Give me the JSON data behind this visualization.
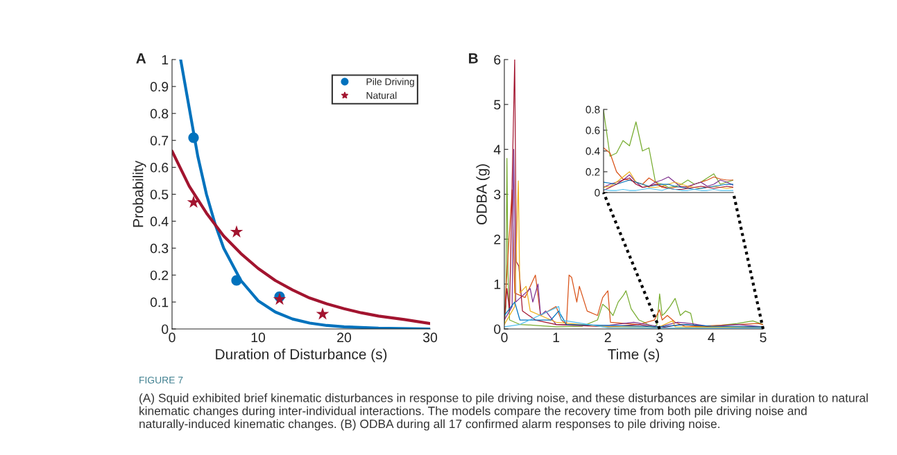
{
  "chart_data": [
    {
      "type": "scatter",
      "title": "A",
      "xlabel": "Duration of Disturbance (s)",
      "ylabel": "Probability",
      "xlim": [
        0,
        30
      ],
      "ylim": [
        0,
        1
      ],
      "xticks": [
        0,
        10,
        20,
        30
      ],
      "yticks": [
        0,
        0.1,
        0.2,
        0.3,
        0.4,
        0.5,
        0.6,
        0.7,
        0.8,
        0.9,
        1
      ],
      "grid": false,
      "legend": "top right",
      "annotations": [
        "FIGURE 7",
        "(A) Squid exhibited brief kinematic disturbances in response to pile driving noise, and these disturbances are similar in duration to natural kinematic changes during inter-individual interactions. The models compare the recovery time from both pile driving noise and naturally-induced kinematic changes. (B) ODBA during all 17 confirmed alarm responses to pile driving noise."
      ],
      "series": [
        {
          "type": "line",
          "color": "#0072bd",
          "x": [
            1,
            2,
            3,
            4,
            5,
            6,
            8,
            10,
            12,
            14,
            16,
            18,
            20,
            24,
            30
          ],
          "values": [
            1.0,
            0.82,
            0.64,
            0.5,
            0.39,
            0.3,
            0.18,
            0.105,
            0.063,
            0.037,
            0.022,
            0.013,
            0.008,
            0.003,
            0
          ]
        },
        {
          "type": "line",
          "color": "#a2142f",
          "x": [
            0,
            2,
            4,
            6,
            8,
            10,
            12,
            14,
            16,
            18,
            20,
            22,
            24,
            27,
            30
          ],
          "values": [
            0.66,
            0.53,
            0.43,
            0.345,
            0.28,
            0.225,
            0.18,
            0.145,
            0.115,
            0.093,
            0.075,
            0.06,
            0.048,
            0.035,
            0.02
          ]
        },
        {
          "type": "scatter",
          "name": "Pile Driving",
          "color": "#0072bd",
          "marker": "circle",
          "x": [
            2.5,
            7.5,
            12.5
          ],
          "values": [
            0.71,
            0.18,
            0.12
          ]
        },
        {
          "type": "scatter",
          "name": "Natural",
          "color": "#a2142f",
          "marker": "star",
          "x": [
            2.5,
            7.5,
            12.5,
            17.5
          ],
          "values": [
            0.47,
            0.36,
            0.11,
            0.055
          ]
        }
      ]
    },
    {
      "type": "line",
      "title": "B",
      "xlabel": "Time (s)",
      "ylabel": "ODBA (g)",
      "xlim": [
        0,
        5
      ],
      "ylim": [
        0,
        6
      ],
      "xticks": [
        0,
        1,
        2,
        3,
        4,
        5
      ],
      "yticks": [
        0,
        1,
        2,
        3,
        4,
        5,
        6
      ],
      "grid": false,
      "series": [
        {
          "color": "#77ac30",
          "x": [
            0,
            0.03,
            0.05,
            0.07,
            0.1,
            0.3,
            0.6,
            1.0,
            1.5,
            1.8,
            1.9,
            2.0,
            2.1,
            2.2,
            2.3,
            2.35,
            2.45,
            2.6,
            2.7,
            2.8,
            2.9,
            2.95,
            3.0,
            3.05,
            3.1,
            3.2,
            3.3,
            3.4,
            3.5,
            3.6,
            3.65,
            3.7,
            4.0,
            4.5,
            4.8,
            5.0
          ],
          "values": [
            0.1,
            0.5,
            3.8,
            1.3,
            0.2,
            0.1,
            0.08,
            0.05,
            0.06,
            0.2,
            0.55,
            0.45,
            0.3,
            0.6,
            0.75,
            0.85,
            0.45,
            0.2,
            0.15,
            0.08,
            0.05,
            0.1,
            0.78,
            0.3,
            0.35,
            0.5,
            0.68,
            0.3,
            0.4,
            0.35,
            0.1,
            0.05,
            0.06,
            0.12,
            0.18,
            0.1
          ]
        },
        {
          "color": "#d95319",
          "x": [
            0,
            0.15,
            0.2,
            0.4,
            0.6,
            0.7,
            1.0,
            1.1,
            1.2,
            1.25,
            1.3,
            1.4,
            1.45,
            1.6,
            1.8,
            1.9,
            2.0,
            2.05,
            2.6,
            2.9,
            3.0,
            3.05,
            3.15,
            3.3,
            3.5,
            4.5,
            4.9,
            5.0
          ],
          "values": [
            0.3,
            3.1,
            0.8,
            0.7,
            1.2,
            0.3,
            0.5,
            0.2,
            0.1,
            1.2,
            1.15,
            0.6,
            0.95,
            0.4,
            0.3,
            0.7,
            0.85,
            0.15,
            0.1,
            0.2,
            0.43,
            0.2,
            0.3,
            0.15,
            0.05,
            0.1,
            0.12,
            0.1
          ]
        },
        {
          "color": "#7e2f8e",
          "x": [
            0,
            0.15,
            0.18,
            0.22,
            0.5,
            0.55,
            0.65,
            0.7,
            0.8,
            1.0,
            2.0,
            2.5,
            3.0,
            3.35,
            3.6,
            4.0,
            4.5,
            5.0
          ],
          "values": [
            0.2,
            0.5,
            4.0,
            0.6,
            0.9,
            0.6,
            1.0,
            0.3,
            0.4,
            0.1,
            0.08,
            0.15,
            0.05,
            0.15,
            0.12,
            0.05,
            0.1,
            0.05
          ]
        },
        {
          "color": "#a2142f",
          "x": [
            0,
            0.05,
            0.1,
            0.2,
            0.23,
            0.28,
            0.35,
            0.6,
            1.0,
            2.0,
            2.6,
            3.0,
            3.4,
            4.0,
            4.5,
            5.0
          ],
          "values": [
            0.2,
            0.9,
            0.4,
            6.0,
            1.5,
            1.4,
            0.4,
            0.2,
            0.1,
            0.05,
            0.1,
            0.02,
            0.1,
            0.05,
            0.03,
            0.05
          ]
        },
        {
          "color": "#edb120",
          "x": [
            0,
            0.2,
            0.27,
            0.3,
            0.42,
            0.5,
            1.0,
            2.0,
            3.0,
            3.25,
            3.3,
            4.0,
            5.0
          ],
          "values": [
            0.1,
            0.5,
            3.3,
            0.8,
            0.95,
            0.4,
            0.15,
            0.05,
            0.05,
            0.18,
            0.05,
            0.04,
            0.03
          ]
        },
        {
          "color": "#0072bd",
          "x": [
            0,
            0.2,
            0.3,
            0.9,
            1.05,
            1.2,
            2.0,
            3.0,
            3.5,
            4.0,
            5.0
          ],
          "values": [
            0.3,
            0.6,
            0.2,
            0.2,
            0.4,
            0.1,
            0.08,
            0.05,
            0.1,
            0.06,
            0.05
          ]
        },
        {
          "color": "#4dbeee",
          "x": [
            0,
            0.3,
            1.05,
            1.1,
            2.0,
            3.0,
            5.0
          ],
          "values": [
            0.05,
            0.1,
            0.5,
            0.2,
            0.03,
            0.02,
            0.02
          ]
        }
      ]
    },
    {
      "type": "line",
      "categories": [
        null,
        null,
        null,
        null,
        null,
        null,
        null,
        null,
        null,
        null,
        null,
        null,
        null,
        null,
        null,
        null,
        null,
        null,
        null,
        null,
        null
      ],
      "ylim": [
        0,
        0.8
      ],
      "yticks": [
        0,
        0.2,
        0.4,
        0.6,
        0.8
      ],
      "tick_labels": "y",
      "grid": false,
      "series": [
        {
          "color": "#77ac30",
          "values": [
            0.79,
            0.35,
            0.38,
            0.5,
            0.45,
            0.68,
            0.4,
            0.43,
            0.1,
            0.08,
            0.05,
            0.06,
            0.08,
            0.12,
            0.08,
            0.1,
            0.14,
            0.18,
            0.08,
            0.1,
            0.12
          ]
        },
        {
          "color": "#d95319",
          "values": [
            0.43,
            0.38,
            0.2,
            0.13,
            0.12,
            0.1,
            0.08,
            0.14,
            0.1,
            0.05,
            0.04,
            0.05,
            0.06,
            0.05,
            0.08,
            0.1,
            0.12,
            0.15,
            0.13,
            0.12,
            0.12
          ]
        },
        {
          "color": "#7e2f8e",
          "values": [
            0.05,
            0.08,
            0.1,
            0.12,
            0.17,
            0.1,
            0.05,
            0.06,
            0.1,
            0.12,
            0.15,
            0.1,
            0.05,
            0.06,
            0.08,
            0.1,
            0.06,
            0.08,
            0.12,
            0.1,
            0.07
          ]
        },
        {
          "color": "#edb120",
          "values": [
            0.05,
            0.06,
            0.1,
            0.15,
            0.2,
            0.1,
            0.08,
            0.05,
            0.05,
            0.06,
            0.08,
            0.1,
            0.08,
            0.06,
            0.05,
            0.04,
            0.05,
            0.06,
            0.05,
            0.04,
            0.05
          ]
        },
        {
          "color": "#0072bd",
          "values": [
            0.1,
            0.09,
            0.08,
            0.1,
            0.12,
            0.1,
            0.08,
            0.06,
            0.07,
            0.08,
            0.08,
            0.06,
            0.05,
            0.04,
            0.03,
            0.04,
            0.05,
            0.06,
            0.07,
            0.08,
            0.08
          ]
        },
        {
          "color": "#a2142f",
          "values": [
            0.02,
            0.05,
            0.08,
            0.12,
            0.14,
            0.08,
            0.05,
            0.06,
            0.08,
            0.06,
            0.04,
            0.03,
            0.03,
            0.04,
            0.05,
            0.06,
            0.05,
            0.04,
            0.05,
            0.06,
            0.05
          ]
        },
        {
          "color": "#4dbeee",
          "values": [
            0.03,
            0.02,
            0.02,
            0.03,
            0.02,
            0.02,
            0.03,
            0.04,
            0.03,
            0.02,
            0.04,
            0.03,
            0.02,
            0.02,
            0.03,
            0.02,
            0.02,
            0.03,
            0.02,
            0.02,
            0.02
          ]
        }
      ]
    }
  ]
}
